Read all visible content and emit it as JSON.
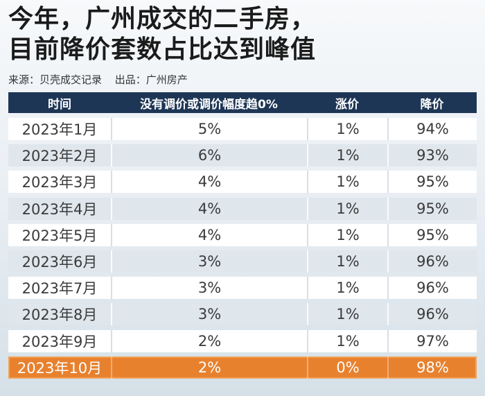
{
  "title_lines": [
    "今年，广州成交的二手房，",
    "目前降价套数占比达到峰值"
  ],
  "source": {
    "data_source": "来源：贝壳成交记录",
    "producer": "出品：广州房产"
  },
  "colors": {
    "header_bg": "#1e3655",
    "highlight_row": "#e8812e",
    "row_odd": "#ffffff",
    "row_even": "#dfe6ec"
  },
  "chart_data": {
    "type": "table",
    "columns": [
      "时间",
      "没有调价或调价幅度趋0%",
      "涨价",
      "降价"
    ],
    "rows": [
      [
        "2023年1月",
        "5%",
        "1%",
        "94%"
      ],
      [
        "2023年2月",
        "6%",
        "1%",
        "93%"
      ],
      [
        "2023年3月",
        "4%",
        "1%",
        "95%"
      ],
      [
        "2023年4月",
        "4%",
        "1%",
        "95%"
      ],
      [
        "2023年5月",
        "4%",
        "1%",
        "95%"
      ],
      [
        "2023年6月",
        "3%",
        "1%",
        "96%"
      ],
      [
        "2023年7月",
        "3%",
        "1%",
        "96%"
      ],
      [
        "2023年8月",
        "3%",
        "1%",
        "96%"
      ],
      [
        "2023年9月",
        "2%",
        "1%",
        "97%"
      ],
      [
        "2023年10月",
        "2%",
        "0%",
        "98%"
      ]
    ],
    "highlighted_row": 9
  }
}
